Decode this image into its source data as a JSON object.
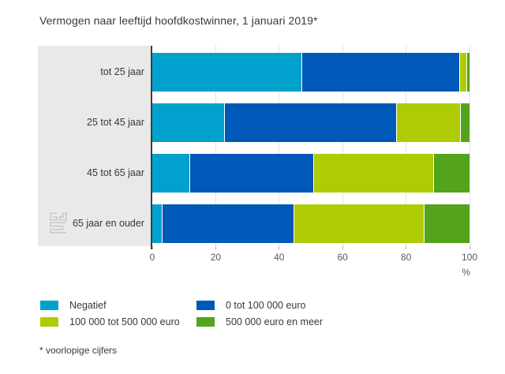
{
  "title": "Vermogen naar leeftijd hoofdkostwinner, 1 januari 2019*",
  "footnote": "* voorlopige cijfers",
  "chart_data": {
    "type": "bar",
    "orientation": "horizontal",
    "stacked": true,
    "title": "Vermogen naar leeftijd hoofdkostwinner, 1 januari 2019*",
    "categories": [
      "tot 25 jaar",
      "25 tot 45 jaar",
      "45 tot 65 jaar",
      "65 jaar en ouder"
    ],
    "series": [
      {
        "name": "Negatief",
        "color": "#00a1cd",
        "values": [
          47.3,
          23.0,
          11.9,
          3.2
        ]
      },
      {
        "name": "0 tot 100 000 euro",
        "color": "#0058b8",
        "values": [
          49.7,
          54.2,
          39.1,
          41.6
        ]
      },
      {
        "name": "100 000 tot 500 000 euro",
        "color": "#afcb05",
        "values": [
          2.2,
          20.1,
          37.9,
          41.1
        ]
      },
      {
        "name": "500 000 euro en meer",
        "color": "#53a31d",
        "values": [
          0.8,
          2.7,
          11.1,
          14.1
        ]
      }
    ],
    "xlabel": "%",
    "xlim": [
      0,
      100
    ],
    "xticks": [
      0,
      20,
      40,
      60,
      80,
      100
    ],
    "grid": true,
    "legend_position": "bottom"
  },
  "icons": {
    "cbs_logo": "cbs-logo-watermark"
  },
  "colors": {
    "panel_background": "#e9e9e9",
    "gridline": "#e3e3e3",
    "axis_line": "#3d3d3d",
    "title_text": "#383838",
    "tick_text": "#595959",
    "logo_gray": "#c6c6c6"
  }
}
